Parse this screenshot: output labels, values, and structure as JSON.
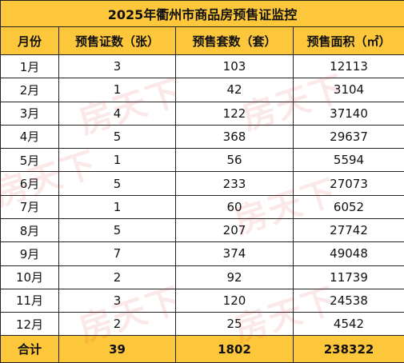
{
  "title": "2025年衢州市商品房预售证监控",
  "headers": {
    "month": "月份",
    "certificates": "预售证数（张）",
    "units": "预售套数（套）",
    "area": "预售面积（㎡）"
  },
  "rows": [
    {
      "month": "1月",
      "certificates": "3",
      "units": "103",
      "area": "12113"
    },
    {
      "month": "2月",
      "certificates": "1",
      "units": "42",
      "area": "3104"
    },
    {
      "month": "3月",
      "certificates": "4",
      "units": "122",
      "area": "37140"
    },
    {
      "month": "4月",
      "certificates": "5",
      "units": "368",
      "area": "29637"
    },
    {
      "month": "5月",
      "certificates": "1",
      "units": "56",
      "area": "5594"
    },
    {
      "month": "6月",
      "certificates": "5",
      "units": "233",
      "area": "27073"
    },
    {
      "month": "7月",
      "certificates": "1",
      "units": "60",
      "area": "6052"
    },
    {
      "month": "8月",
      "certificates": "5",
      "units": "207",
      "area": "27742"
    },
    {
      "month": "9月",
      "certificates": "7",
      "units": "374",
      "area": "49048"
    },
    {
      "month": "10月",
      "certificates": "2",
      "units": "92",
      "area": "11739"
    },
    {
      "month": "11月",
      "certificates": "3",
      "units": "120",
      "area": "24538"
    },
    {
      "month": "12月",
      "certificates": "2",
      "units": "25",
      "area": "4542"
    }
  ],
  "total": {
    "label": "合计",
    "certificates": "39",
    "units": "1802",
    "area": "238322"
  },
  "watermark": "房天下",
  "colors": {
    "header_background": "#fdc73b",
    "border": "#222222",
    "watermark": "#e0262f"
  }
}
